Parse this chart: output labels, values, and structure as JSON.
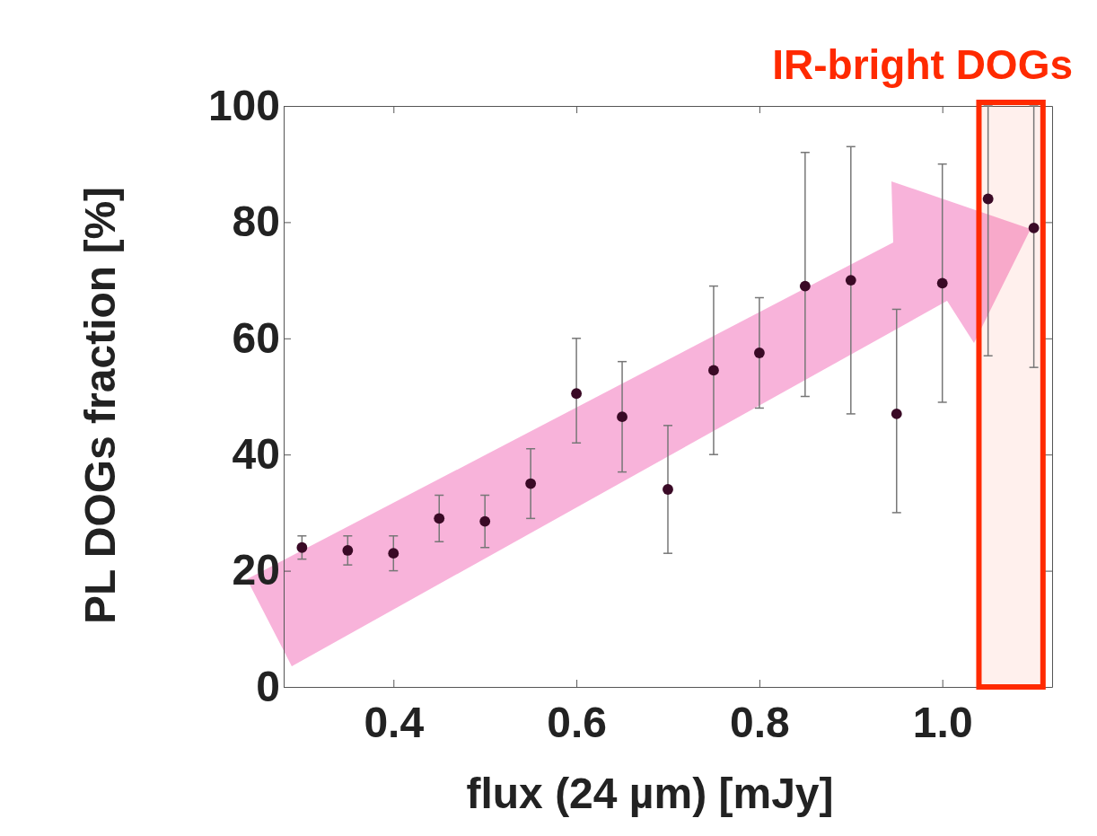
{
  "chart_data": {
    "type": "scatter",
    "xlabel": "flux (24 µm) [mJy]",
    "ylabel": "PL DOGs fraction [%]",
    "x": [
      0.3,
      0.35,
      0.4,
      0.45,
      0.5,
      0.55,
      0.6,
      0.65,
      0.7,
      0.75,
      0.8,
      0.85,
      0.9,
      0.95,
      1.0,
      1.05,
      1.1
    ],
    "series": [
      {
        "color": "#3a0a26",
        "values": [
          24,
          23.5,
          23,
          29,
          28.5,
          35,
          50.5,
          46.5,
          34,
          54.5,
          57.5,
          69,
          70,
          47,
          69.5,
          84,
          79
        ],
        "errors": [
          [
            22,
            26
          ],
          [
            21,
            26
          ],
          [
            20,
            26
          ],
          [
            25,
            33
          ],
          [
            24,
            33
          ],
          [
            29,
            41
          ],
          [
            42,
            60
          ],
          [
            37,
            56
          ],
          [
            23,
            45
          ],
          [
            40,
            69
          ],
          [
            48,
            67
          ],
          [
            50,
            92
          ],
          [
            47,
            93
          ],
          [
            30,
            65
          ],
          [
            49,
            90
          ],
          [
            57,
            100
          ],
          [
            55,
            100
          ]
        ]
      }
    ],
    "xlim": [
      0.28,
      1.12
    ],
    "ylim": [
      0,
      100
    ],
    "xticks": [
      {
        "value": 0.4,
        "label": "0.4"
      },
      {
        "value": 0.6,
        "label": "0.6"
      },
      {
        "value": 0.8,
        "label": "0.8"
      },
      {
        "value": 1.0,
        "label": "1.0"
      }
    ],
    "yticks": [
      0,
      20,
      40,
      60,
      80,
      100
    ],
    "marker": "circle",
    "grid": false,
    "bands": [
      {
        "axis": "x",
        "from": 1.04,
        "to": 1.11,
        "label": "IR-bright DOGs",
        "color": "#ff2a00"
      }
    ]
  }
}
